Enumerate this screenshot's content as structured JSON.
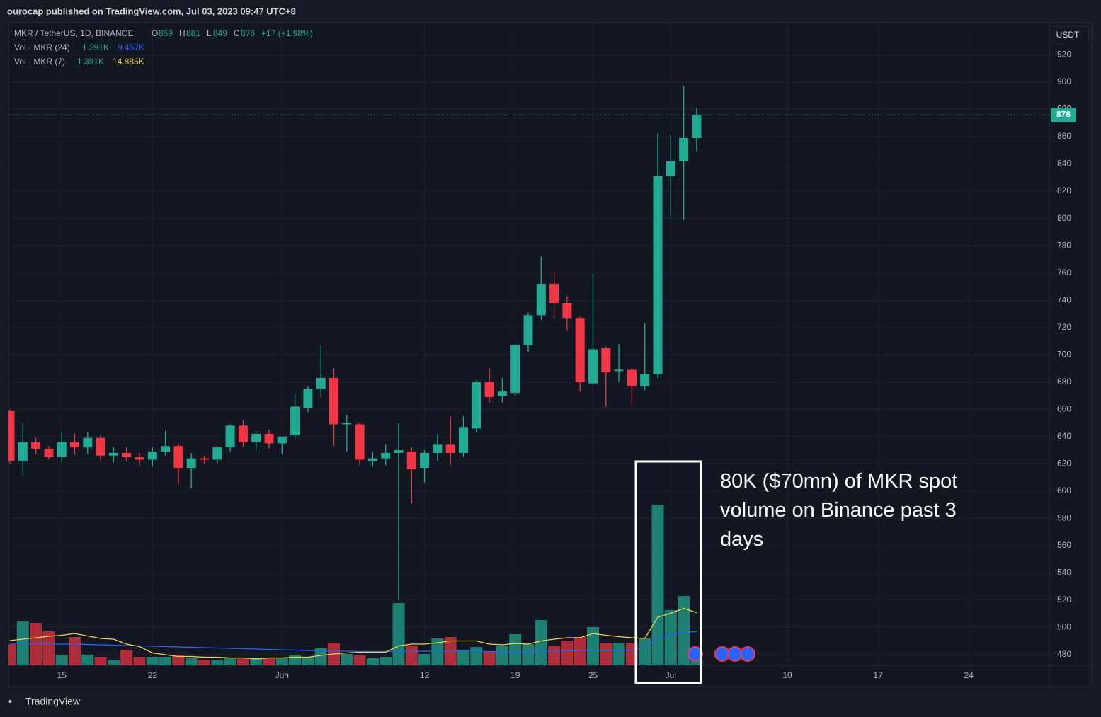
{
  "header": {
    "publisher": "ourocap published on TradingView.com, Jul 03, 2023 09:47 UTC+8"
  },
  "footer": {
    "brand": "TradingView"
  },
  "chart_data": {
    "type": "candlestick",
    "title": "MKR / TetherUS, 1D, BINANCE",
    "ohlc_labels": [
      "O",
      "H",
      "L",
      "C"
    ],
    "change": "+17 (+1.98%)",
    "unit": "USDT",
    "annotation": "80K ($70mn) of MKR spot volume on Binance past 3 days",
    "up_color": "#22ab94",
    "down_color": "#f23645",
    "grid": true,
    "x": [
      "2023-05-11",
      "2023-05-12",
      "2023-05-13",
      "2023-05-14",
      "2023-05-15",
      "2023-05-16",
      "2023-05-17",
      "2023-05-18",
      "2023-05-19",
      "2023-05-20",
      "2023-05-21",
      "2023-05-22",
      "2023-05-23",
      "2023-05-24",
      "2023-05-25",
      "2023-05-26",
      "2023-05-27",
      "2023-05-28",
      "2023-05-29",
      "2023-05-30",
      "2023-05-31",
      "2023-06-01",
      "2023-06-02",
      "2023-06-03",
      "2023-06-04",
      "2023-06-05",
      "2023-06-06",
      "2023-06-07",
      "2023-06-08",
      "2023-06-09",
      "2023-06-10",
      "2023-06-11",
      "2023-06-12",
      "2023-06-13",
      "2023-06-14",
      "2023-06-15",
      "2023-06-16",
      "2023-06-17",
      "2023-06-18",
      "2023-06-19",
      "2023-06-20",
      "2023-06-21",
      "2023-06-22",
      "2023-06-23",
      "2023-06-24",
      "2023-06-25",
      "2023-06-26",
      "2023-06-27",
      "2023-06-28",
      "2023-06-29",
      "2023-06-30",
      "2023-07-01",
      "2023-07-02",
      "2023-07-03"
    ],
    "open": [
      659,
      622,
      636,
      631,
      625,
      636,
      632,
      639,
      626,
      628,
      625,
      623,
      629,
      633,
      617,
      624,
      623,
      632,
      648,
      636,
      642,
      635,
      641,
      661,
      675,
      683,
      649,
      649,
      622,
      624,
      628,
      629,
      617,
      628,
      634,
      628,
      646,
      680,
      670,
      672,
      707,
      729,
      752,
      738,
      727,
      679,
      705,
      688,
      689,
      677,
      686,
      831,
      842,
      859
    ],
    "high": [
      660,
      650,
      639,
      633,
      643,
      642,
      643,
      641,
      632,
      632,
      628,
      632,
      644,
      635,
      628,
      626,
      633,
      649,
      652,
      644,
      645,
      640,
      671,
      677,
      707,
      690,
      656,
      650,
      629,
      634,
      650,
      632,
      630,
      642,
      655,
      655,
      681,
      690,
      683,
      708,
      731,
      772,
      761,
      743,
      728,
      760,
      706,
      708,
      690,
      723,
      862,
      862,
      897,
      881
    ],
    "low": [
      620,
      611,
      627,
      623,
      621,
      627,
      627,
      622,
      621,
      622,
      619,
      618,
      626,
      605,
      602,
      620,
      620,
      629,
      632,
      630,
      631,
      627,
      638,
      658,
      669,
      633,
      629,
      619,
      618,
      619,
      520,
      591,
      606,
      622,
      619,
      625,
      643,
      665,
      665,
      670,
      702,
      726,
      727,
      718,
      673,
      678,
      662,
      680,
      663,
      674,
      683,
      800,
      799,
      849
    ],
    "close": [
      622,
      636,
      631,
      625,
      636,
      632,
      639,
      626,
      628,
      625,
      623,
      629,
      633,
      617,
      624,
      623,
      632,
      648,
      636,
      642,
      635,
      640,
      662,
      675,
      683,
      649,
      650,
      623,
      624,
      628,
      630,
      616,
      628,
      634,
      628,
      647,
      680,
      669,
      673,
      707,
      729,
      752,
      738,
      727,
      680,
      704,
      687,
      689,
      677,
      686,
      831,
      842,
      859,
      876
    ],
    "volume": [
      6.0,
      12.4,
      12.0,
      9.6,
      3.0,
      8.0,
      3.0,
      2.4,
      1.6,
      4.4,
      2.4,
      2.4,
      2.4,
      3.0,
      2.0,
      1.6,
      1.6,
      2.0,
      2.0,
      2.0,
      2.0,
      2.0,
      2.8,
      2.4,
      4.8,
      6.4,
      3.2,
      2.8,
      2.0,
      2.4,
      17.6,
      5.6,
      3.2,
      7.6,
      8.0,
      4.4,
      5.2,
      4.0,
      5.6,
      8.8,
      6.0,
      12.8,
      5.6,
      7.0,
      8.0,
      10.8,
      6.4,
      6.4,
      6.4,
      7.6,
      45.4,
      15.6,
      19.6,
      1.391
    ],
    "volume_labels": [
      null,
      null,
      null,
      null,
      null,
      null,
      null,
      null,
      null,
      null,
      null,
      null,
      null,
      null,
      null,
      null,
      null,
      null,
      null,
      null,
      null,
      null,
      null,
      null,
      null,
      null,
      null,
      null,
      null,
      null,
      null,
      null,
      null,
      null,
      null,
      null,
      null,
      null,
      null,
      null,
      null,
      null,
      null,
      null,
      null,
      null,
      null,
      null,
      null,
      null,
      null,
      null,
      null,
      "1.391K"
    ],
    "series": [
      {
        "name": "Vol · MKR (24)",
        "color": "#2962ff",
        "axis": "y2",
        "values": [
          6.2,
          6.2,
          6.1,
          6.1,
          6.0,
          6.0,
          5.9,
          5.8,
          5.7,
          5.6,
          5.5,
          5.4,
          5.3,
          5.2,
          5.1,
          5.0,
          4.9,
          4.8,
          4.7,
          4.6,
          4.5,
          4.4,
          4.3,
          4.2,
          4.1,
          4.0,
          4.0,
          3.9,
          3.9,
          3.9,
          4.0,
          4.0,
          4.0,
          4.0,
          4.0,
          4.0,
          4.0,
          3.9,
          3.9,
          3.9,
          3.9,
          4.0,
          4.0,
          4.1,
          4.1,
          4.2,
          4.2,
          4.3,
          4.3,
          5.2,
          7.6,
          8.6,
          9.4,
          9.457
        ],
        "value_labels": [
          null,
          null,
          null,
          null,
          null,
          null,
          null,
          null,
          null,
          null,
          null,
          null,
          null,
          null,
          null,
          null,
          null,
          null,
          null,
          null,
          null,
          null,
          null,
          null,
          null,
          null,
          null,
          null,
          null,
          null,
          null,
          null,
          null,
          null,
          null,
          null,
          null,
          null,
          null,
          null,
          null,
          null,
          null,
          null,
          null,
          null,
          null,
          null,
          null,
          null,
          null,
          null,
          null,
          "9.457K"
        ]
      },
      {
        "name": "Vol · MKR (7)",
        "color": "#f0d34a",
        "axis": "y2",
        "values": [
          7.0,
          7.4,
          7.8,
          8.2,
          8.5,
          9.0,
          8.3,
          7.6,
          7.4,
          6.0,
          5.3,
          3.5,
          3.0,
          2.5,
          2.5,
          2.3,
          2.3,
          2.1,
          2.1,
          1.8,
          2.1,
          2.1,
          2.3,
          2.3,
          2.8,
          3.2,
          3.5,
          3.7,
          3.7,
          3.7,
          5.5,
          6.0,
          6.0,
          6.4,
          6.9,
          6.9,
          6.9,
          6.0,
          5.8,
          6.2,
          6.0,
          6.9,
          7.4,
          7.8,
          7.8,
          9.0,
          8.5,
          8.1,
          7.8,
          7.6,
          13.6,
          14.7,
          16.1,
          14.885
        ],
        "value_labels": [
          null,
          null,
          null,
          null,
          null,
          null,
          null,
          null,
          null,
          null,
          null,
          null,
          null,
          null,
          null,
          null,
          null,
          null,
          null,
          null,
          null,
          null,
          null,
          null,
          null,
          null,
          null,
          null,
          null,
          null,
          null,
          null,
          null,
          null,
          null,
          null,
          null,
          null,
          null,
          null,
          null,
          null,
          null,
          null,
          null,
          null,
          null,
          null,
          null,
          null,
          null,
          null,
          null,
          "14.885K"
        ]
      }
    ],
    "xlim": [
      "2023-05-11",
      "2023-07-30"
    ],
    "xticks": [
      {
        "value": "2023-05-15",
        "label": "15"
      },
      {
        "value": "2023-05-22",
        "label": "22"
      },
      {
        "value": "2023-06-01",
        "label": "Jun"
      },
      {
        "value": "2023-06-12",
        "label": "12"
      },
      {
        "value": "2023-06-19",
        "label": "19"
      },
      {
        "value": "2023-06-25",
        "label": "25"
      },
      {
        "value": "2023-07-01",
        "label": "Jul"
      },
      {
        "value": "2023-07-10",
        "label": "10"
      },
      {
        "value": "2023-07-17",
        "label": "17"
      },
      {
        "value": "2023-07-24",
        "label": "24"
      }
    ],
    "ylim": [
      472.2,
      943.6
    ],
    "yticks": [
      480,
      500,
      520,
      540,
      560,
      580,
      600,
      620,
      640,
      660,
      680,
      700,
      720,
      740,
      760,
      780,
      800,
      820,
      840,
      860,
      880,
      900,
      920
    ],
    "y2lim": [
      0,
      181.6
    ]
  }
}
